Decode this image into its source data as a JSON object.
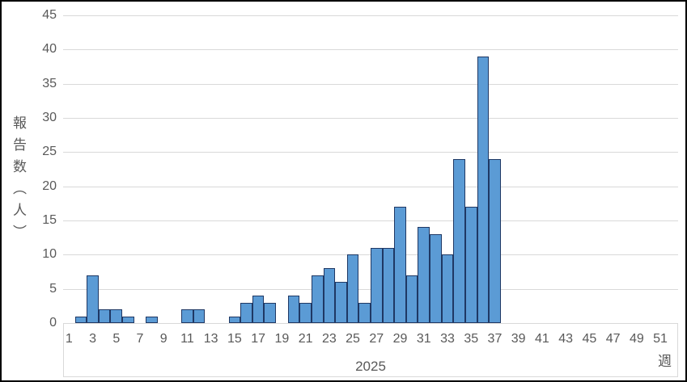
{
  "chart_data": {
    "type": "bar",
    "title": "",
    "xlabel": "週",
    "ylabel": "報告数（人）",
    "year_label": "2025",
    "weeks_total": 52,
    "x_tick_labels": [
      "1",
      "3",
      "5",
      "7",
      "9",
      "11",
      "13",
      "15",
      "17",
      "19",
      "21",
      "23",
      "25",
      "27",
      "29",
      "31",
      "33",
      "35",
      "37",
      "39",
      "41",
      "43",
      "45",
      "47",
      "49",
      "51"
    ],
    "y_tick_labels": [
      "0",
      "5",
      "10",
      "15",
      "20",
      "25",
      "30",
      "35",
      "40",
      "45"
    ],
    "ylim": [
      0,
      45
    ],
    "y_step": 5,
    "grid": true,
    "legend": "none",
    "values": [
      0,
      1,
      7,
      2,
      2,
      1,
      0,
      1,
      0,
      0,
      2,
      2,
      0,
      0,
      1,
      3,
      4,
      3,
      0,
      4,
      3,
      7,
      8,
      6,
      10,
      3,
      11,
      11,
      17,
      7,
      14,
      13,
      10,
      24,
      17,
      39,
      24,
      0,
      0,
      0,
      0,
      0,
      0,
      0,
      0,
      0,
      0,
      0,
      0,
      0,
      0,
      0
    ],
    "colors": {
      "bar_fill": "#5B9BD5",
      "bar_border": "#1F3864",
      "gridline": "#D9D9D9",
      "label_text": "#595959",
      "chart_frame": "#000000"
    }
  }
}
